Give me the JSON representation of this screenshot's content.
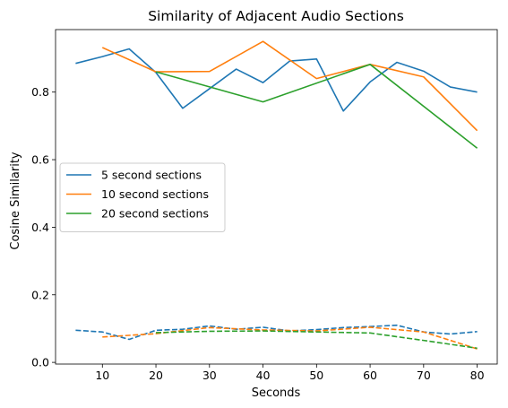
{
  "chart_data": {
    "type": "line",
    "title": "Similarity of Adjacent Audio Sections",
    "xlabel": "Seconds",
    "ylabel": "Cosine Similarity",
    "xlim": [
      1.25,
      83.75
    ],
    "ylim": [
      -0.005,
      0.985
    ],
    "xticks": [
      10,
      20,
      30,
      40,
      50,
      60,
      70,
      80
    ],
    "yticks": [
      0.0,
      0.2,
      0.4,
      0.6,
      0.8
    ],
    "grid": false,
    "legend_position": "center-left",
    "series": [
      {
        "name": "5 second sections",
        "color": "#1f77b4",
        "linestyle": "solid",
        "x": [
          5,
          10,
          15,
          20,
          25,
          30,
          35,
          40,
          45,
          50,
          55,
          60,
          65,
          70,
          75,
          80
        ],
        "y": [
          0.885,
          0.905,
          0.928,
          0.858,
          0.752,
          0.81,
          0.868,
          0.828,
          0.892,
          0.898,
          0.744,
          0.83,
          0.888,
          0.862,
          0.815,
          0.8
        ]
      },
      {
        "name": "10 second sections",
        "color": "#ff7f0e",
        "linestyle": "solid",
        "x": [
          10,
          20,
          30,
          40,
          50,
          60,
          70,
          80
        ],
        "y": [
          0.932,
          0.86,
          0.861,
          0.95,
          0.84,
          0.882,
          0.845,
          0.686
        ]
      },
      {
        "name": "20 second sections",
        "color": "#2ca02c",
        "linestyle": "solid",
        "x": [
          20,
          40,
          60,
          80
        ],
        "y": [
          0.86,
          0.771,
          0.882,
          0.634
        ]
      },
      {
        "color": "#1f77b4",
        "linestyle": "dashed",
        "x": [
          5,
          10,
          15,
          20,
          25,
          30,
          35,
          40,
          45,
          50,
          55,
          60,
          65,
          70,
          75,
          80
        ],
        "y": [
          0.095,
          0.09,
          0.068,
          0.095,
          0.098,
          0.108,
          0.098,
          0.104,
          0.093,
          0.097,
          0.103,
          0.106,
          0.11,
          0.09,
          0.084,
          0.091
        ]
      },
      {
        "color": "#ff7f0e",
        "linestyle": "dashed",
        "x": [
          10,
          20,
          30,
          40,
          50,
          60,
          70,
          80
        ],
        "y": [
          0.075,
          0.085,
          0.103,
          0.096,
          0.093,
          0.104,
          0.09,
          0.04
        ]
      },
      {
        "color": "#2ca02c",
        "linestyle": "dashed",
        "x": [
          20,
          30,
          40,
          50,
          60,
          70,
          80
        ],
        "y": [
          0.088,
          0.092,
          0.093,
          0.09,
          0.087,
          0.065,
          0.042
        ]
      }
    ]
  }
}
